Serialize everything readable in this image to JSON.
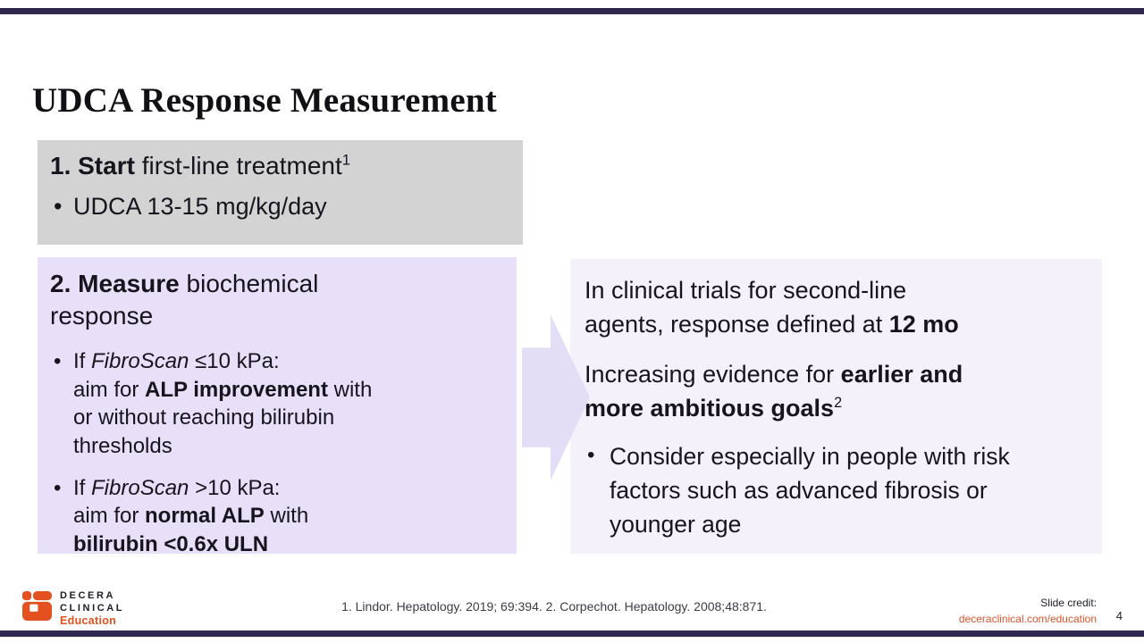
{
  "slide": {
    "title": "UDCA Response Measurement",
    "page_number": "4",
    "accent_bar_color": "#312850",
    "background_color": "#ffffff"
  },
  "box1": {
    "bg_color": "#d3d3d3",
    "heading": [
      {
        "t": "1. Start",
        "b": true
      },
      {
        "t": " first-line treatment"
      },
      {
        "t": "1",
        "sup": true
      }
    ],
    "bullets": [
      [
        {
          "t": "UDCA 13-15 mg/kg/day"
        }
      ]
    ]
  },
  "box2": {
    "bg_color": "#e7e0f8",
    "heading": [
      {
        "t": "2. Measure",
        "b": true
      },
      {
        "t": " biochemical"
      },
      {
        "br": true
      },
      {
        "t": "response"
      }
    ],
    "bullets": [
      [
        {
          "t": "If "
        },
        {
          "t": "FibroScan",
          "i": true
        },
        {
          "t": " ≤10 kPa:"
        },
        {
          "br": true
        },
        {
          "t": "aim for "
        },
        {
          "t": "ALP improvement",
          "b": true
        },
        {
          "t": " with"
        },
        {
          "br": true
        },
        {
          "t": "or without reaching bilirubin"
        },
        {
          "br": true
        },
        {
          "t": "thresholds"
        }
      ],
      [
        {
          "t": "If "
        },
        {
          "t": "FibroScan",
          "i": true
        },
        {
          "t": " >10 kPa:"
        },
        {
          "br": true
        },
        {
          "t": "aim for "
        },
        {
          "t": "normal ALP",
          "b": true
        },
        {
          "t": " with"
        },
        {
          "br": true
        },
        {
          "t": "bilirubin <0.6x ULN",
          "b": true
        }
      ]
    ]
  },
  "arrow": {
    "direction": "right",
    "color": "#e4ddf6"
  },
  "right_panel": {
    "bg_color": "#f4f1fa",
    "paragraphs": [
      [
        {
          "t": "In clinical trials for second-line"
        },
        {
          "br": true
        },
        {
          "t": "agents, response defined at "
        },
        {
          "t": "12 mo",
          "b": true
        }
      ],
      [
        {
          "t": "Increasing evidence for "
        },
        {
          "t": "earlier and",
          "b": true
        },
        {
          "br": true
        },
        {
          "t": "more ambitious goals",
          "b": true
        },
        {
          "t": "2",
          "sup": true
        }
      ]
    ],
    "bullets": [
      [
        {
          "t": "Consider especially in people with risk"
        },
        {
          "br": true
        },
        {
          "t": "factors such as advanced fibrosis or"
        },
        {
          "br": true
        },
        {
          "t": "younger age"
        }
      ]
    ]
  },
  "footer": {
    "logo": {
      "icon": "decera-logo-icon",
      "icon_color": "#e2511f",
      "line1": "DECERA",
      "line2": "CLINICAL",
      "line3": "Education"
    },
    "citation": "1. Lindor. Hepatology. 2019; 69:394. 2. Corpechot. Hepatology. 2008;48:871.",
    "slide_credit_label": "Slide credit:",
    "slide_credit_link": "deceraclinical.com/education",
    "link_color": "#d9542b"
  }
}
